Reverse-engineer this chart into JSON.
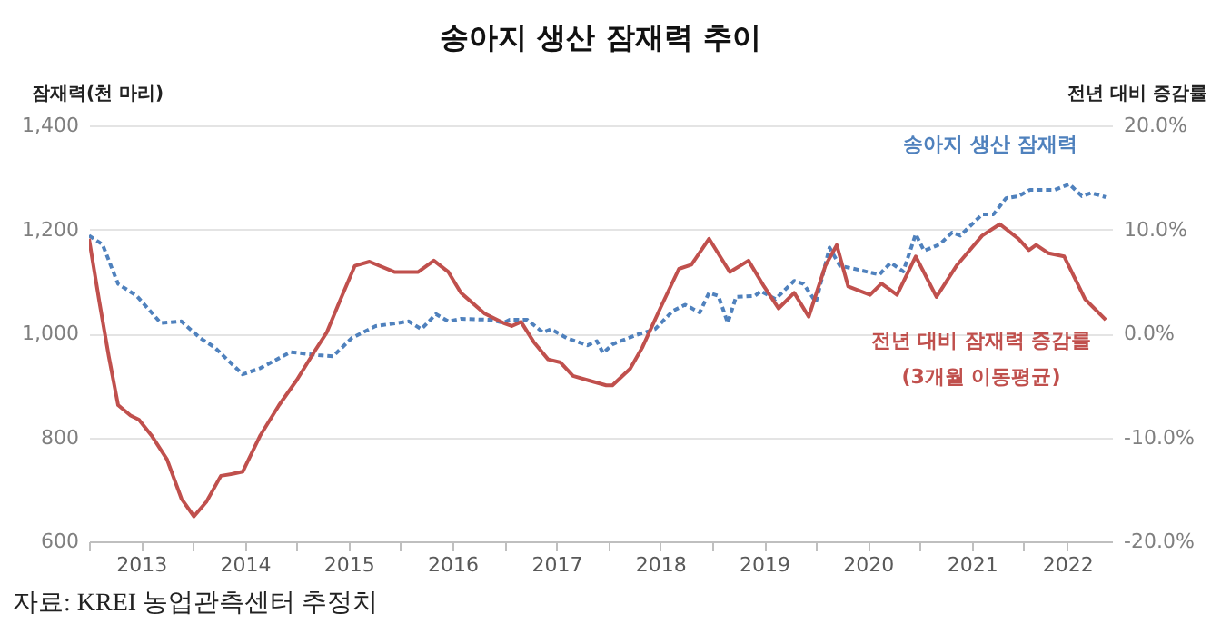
{
  "chart_data": {
    "type": "line",
    "title": "송아지 생산 잠재력 추이",
    "ylabel": "잠재력(천 마리)",
    "y2label": "전년 대비 증감률",
    "xlim": [
      2013,
      2022.85
    ],
    "xticks": [
      {
        "value": 2013,
        "label": null
      },
      {
        "value": 2013.5,
        "label": "2013"
      },
      {
        "value": 2014,
        "label": null
      },
      {
        "value": 2014.5,
        "label": "2014"
      },
      {
        "value": 2015,
        "label": null
      },
      {
        "value": 2015.5,
        "label": "2015"
      },
      {
        "value": 2016,
        "label": null
      },
      {
        "value": 2016.5,
        "label": "2016"
      },
      {
        "value": 2017,
        "label": null
      },
      {
        "value": 2017.5,
        "label": "2017"
      },
      {
        "value": 2018,
        "label": null
      },
      {
        "value": 2018.5,
        "label": "2018"
      },
      {
        "value": 2019,
        "label": null
      },
      {
        "value": 2019.5,
        "label": "2019"
      },
      {
        "value": 2020,
        "label": null
      },
      {
        "value": 2020.5,
        "label": "2020"
      },
      {
        "value": 2021,
        "label": null
      },
      {
        "value": 2021.5,
        "label": "2021"
      },
      {
        "value": 2022,
        "label": null
      },
      {
        "value": 2022.42,
        "label": "2022"
      }
    ],
    "ylim": [
      600,
      1400
    ],
    "yticks": [
      {
        "value": 600,
        "label": "600"
      },
      {
        "value": 800,
        "label": "800"
      },
      {
        "value": 1000,
        "label": "1,000"
      },
      {
        "value": 1200,
        "label": "1,200"
      },
      {
        "value": 1400,
        "label": "1,400"
      }
    ],
    "y2lim": [
      -20,
      20
    ],
    "y2ticks": [
      {
        "value": -20,
        "label": "-20.0%"
      },
      {
        "value": -10,
        "label": "-10.0%"
      },
      {
        "value": 0,
        "label": "0.0%"
      },
      {
        "value": 10,
        "label": "10.0%"
      },
      {
        "value": 20,
        "label": "20.0%"
      }
    ],
    "grid": "y",
    "legend": false,
    "annotations": [
      "자료: KREI  농업관측센터  추정치"
    ],
    "series": [
      {
        "name": "송아지 생산 잠재력",
        "color": "#4f81bd",
        "line_style": "dashed",
        "x": [
          2013.0,
          2013.13,
          2013.28,
          2013.46,
          2013.69,
          2013.89,
          2014.07,
          2014.21,
          2014.36,
          2014.48,
          2014.65,
          2014.94,
          2015.21,
          2015.35,
          2015.53,
          2015.76,
          2016.08,
          2016.2,
          2016.34,
          2016.46,
          2016.58,
          2016.87,
          2016.99,
          2017.05,
          2017.22,
          2017.37,
          2017.45,
          2017.6,
          2017.8,
          2017.89,
          2017.95,
          2018.04,
          2018.27,
          2018.45,
          2018.62,
          2018.74,
          2018.88,
          2018.97,
          2019.06,
          2019.15,
          2019.23,
          2019.41,
          2019.47,
          2019.61,
          2019.79,
          2019.88,
          2020.0,
          2020.13,
          2020.23,
          2020.37,
          2020.61,
          2020.72,
          2020.84,
          2020.96,
          2021.04,
          2021.19,
          2021.31,
          2021.39,
          2021.6,
          2021.71,
          2021.83,
          2021.95,
          2022.06,
          2022.3,
          2022.44,
          2022.56,
          2022.65,
          2022.79
        ],
        "values": [
          1188,
          1171,
          1095,
          1072,
          1020,
          1023,
          991,
          973,
          944,
          921,
          933,
          964,
          958,
          956,
          991,
          1014,
          1023,
          1008,
          1037,
          1023,
          1028,
          1026,
          1020,
          1026,
          1026,
          1002,
          1008,
          991,
          977,
          985,
          962,
          979,
          997,
          1008,
          1043,
          1055,
          1040,
          1078,
          1072,
          1020,
          1070,
          1072,
          1081,
          1066,
          1101,
          1095,
          1060,
          1165,
          1130,
          1124,
          1113,
          1136,
          1119,
          1191,
          1159,
          1171,
          1194,
          1188,
          1229,
          1229,
          1260,
          1264,
          1276,
          1276,
          1287,
          1264,
          1270,
          1262
        ]
      },
      {
        "name": "전년 대비 잠재력 증감률\n(3개월 이동평균)",
        "color": "#c0504d",
        "axis": "y2",
        "line_style": "solid",
        "x": [
          2013.0,
          2013.1,
          2013.19,
          2013.28,
          2013.4,
          2013.48,
          2013.6,
          2013.75,
          2013.89,
          2014.01,
          2014.13,
          2014.27,
          2014.39,
          2014.48,
          2014.65,
          2014.83,
          2015.0,
          2015.18,
          2015.29,
          2015.41,
          2015.56,
          2015.7,
          2015.94,
          2016.17,
          2016.32,
          2016.46,
          2016.58,
          2016.81,
          2016.99,
          2017.07,
          2017.16,
          2017.28,
          2017.42,
          2017.54,
          2017.66,
          2017.8,
          2017.98,
          2018.04,
          2018.21,
          2018.33,
          2018.5,
          2018.68,
          2018.8,
          2018.97,
          2019.17,
          2019.35,
          2019.5,
          2019.64,
          2019.79,
          2019.93,
          2020.09,
          2020.2,
          2020.31,
          2020.52,
          2020.63,
          2020.78,
          2020.96,
          2021.16,
          2021.36,
          2021.6,
          2021.77,
          2021.95,
          2022.05,
          2022.12,
          2022.24,
          2022.39,
          2022.59,
          2022.79
        ],
        "values": [
          9.1,
          3.0,
          -2.2,
          -6.9,
          -7.9,
          -8.3,
          -9.8,
          -12.1,
          -15.9,
          -17.6,
          -16.2,
          -13.7,
          -13.5,
          -13.3,
          -9.8,
          -6.9,
          -4.5,
          -1.6,
          0.1,
          3.0,
          6.5,
          6.9,
          5.9,
          5.9,
          7.0,
          5.9,
          3.9,
          1.9,
          1.0,
          0.7,
          1.1,
          -0.8,
          -2.5,
          -2.8,
          -4.1,
          -4.5,
          -5.0,
          -5.0,
          -3.4,
          -1.3,
          2.4,
          6.2,
          6.6,
          9.1,
          5.9,
          7.0,
          4.5,
          2.4,
          3.9,
          1.6,
          6.5,
          8.5,
          4.5,
          3.7,
          4.8,
          3.7,
          7.4,
          3.5,
          6.6,
          9.4,
          10.5,
          9.1,
          8.0,
          8.5,
          7.7,
          7.4,
          3.3,
          1.3
        ]
      }
    ]
  }
}
